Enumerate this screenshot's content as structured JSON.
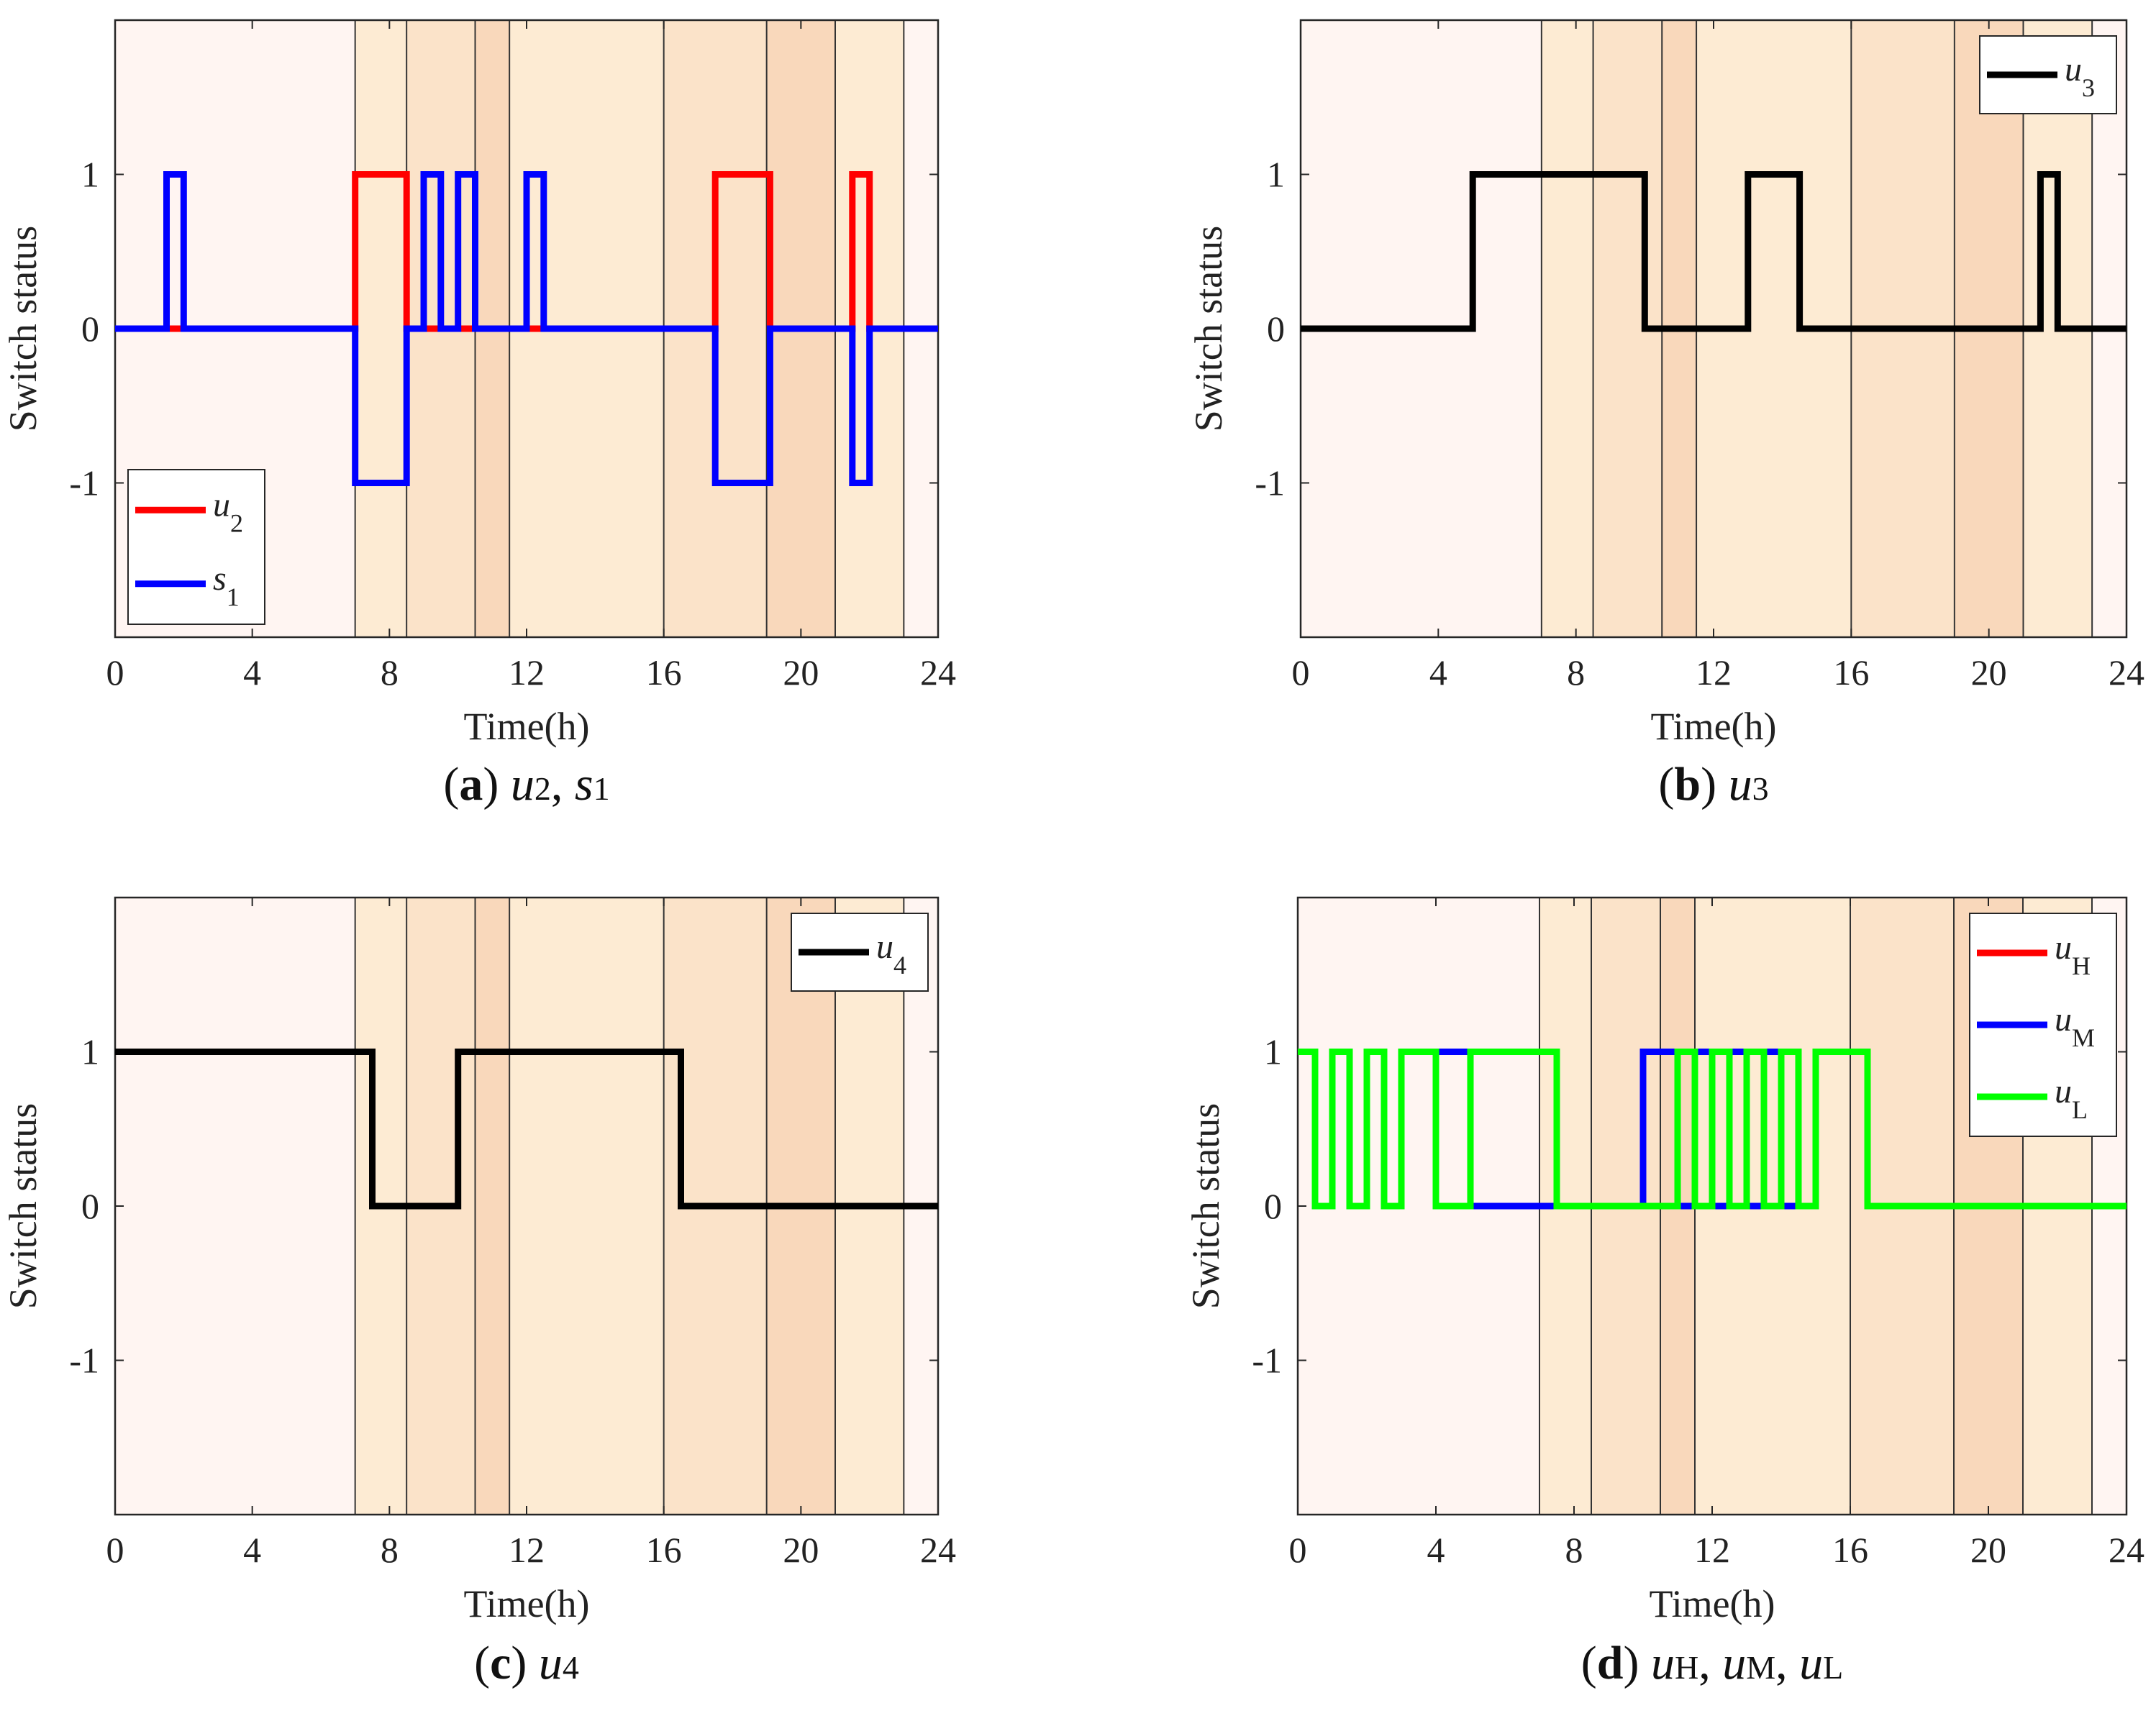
{
  "chart_data": [
    {
      "type": "line",
      "panel": "a",
      "caption": {
        "letter": "a",
        "parts": [
          {
            "base": "u",
            "sub": "2"
          },
          {
            "base": "s",
            "sub": "1"
          }
        ]
      },
      "xlabel": "Time(h)",
      "ylabel": "Switch status",
      "xlim": [
        0,
        24
      ],
      "ylim": [
        -2,
        2
      ],
      "xticks": [
        0,
        4,
        8,
        12,
        16,
        20,
        24
      ],
      "yticks": [
        -1,
        0,
        1
      ],
      "legend_position": "bottom-left",
      "series": [
        {
          "name": "u",
          "sub": "2",
          "color": "#ff0000",
          "x": [
            0,
            7,
            7,
            8.5,
            8.5,
            17.5,
            17.5,
            19.1,
            19.1,
            21.5,
            21.5,
            22,
            22,
            24
          ],
          "y": [
            0,
            0,
            1,
            1,
            0,
            0,
            1,
            1,
            0,
            0,
            1,
            1,
            0,
            0
          ]
        },
        {
          "name": "s",
          "sub": "1",
          "color": "#0000ff",
          "x": [
            0,
            1.5,
            1.5,
            2,
            2,
            7,
            7,
            8.5,
            8.5,
            9,
            9,
            9.5,
            9.5,
            10,
            10,
            10.5,
            10.5,
            12,
            12,
            12.5,
            12.5,
            17.5,
            17.5,
            19.1,
            19.1,
            21.5,
            21.5,
            22,
            22,
            24
          ],
          "y": [
            0,
            0,
            1,
            1,
            0,
            0,
            -1,
            -1,
            0,
            0,
            1,
            1,
            0,
            0,
            1,
            1,
            0,
            0,
            1,
            1,
            0,
            0,
            -1,
            -1,
            0,
            0,
            -1,
            -1,
            0,
            0
          ]
        }
      ]
    },
    {
      "type": "line",
      "panel": "b",
      "caption": {
        "letter": "b",
        "parts": [
          {
            "base": "u",
            "sub": "3"
          }
        ]
      },
      "xlabel": "Time(h)",
      "ylabel": "Switch status",
      "xlim": [
        0,
        24
      ],
      "ylim": [
        -2,
        2
      ],
      "xticks": [
        0,
        4,
        8,
        12,
        16,
        20,
        24
      ],
      "yticks": [
        -1,
        0,
        1
      ],
      "legend_position": "top-right",
      "series": [
        {
          "name": "u",
          "sub": "3",
          "color": "#000000",
          "x": [
            0,
            5,
            5,
            10,
            10,
            13,
            13,
            14.5,
            14.5,
            21.5,
            21.5,
            22,
            22,
            24
          ],
          "y": [
            0,
            0,
            1,
            1,
            0,
            0,
            1,
            1,
            0,
            0,
            1,
            1,
            0,
            0
          ]
        }
      ]
    },
    {
      "type": "line",
      "panel": "c",
      "caption": {
        "letter": "c",
        "parts": [
          {
            "base": "u",
            "sub": "4"
          }
        ]
      },
      "xlabel": "Time(h)",
      "ylabel": "Switch status",
      "xlim": [
        0,
        24
      ],
      "ylim": [
        -2,
        2
      ],
      "xticks": [
        0,
        4,
        8,
        12,
        16,
        20,
        24
      ],
      "yticks": [
        -1,
        0,
        1
      ],
      "legend_position": "top-right",
      "series": [
        {
          "name": "u",
          "sub": "4",
          "color": "#000000",
          "x": [
            0,
            7.5,
            7.5,
            10,
            10,
            16.5,
            16.5,
            24
          ],
          "y": [
            1,
            1,
            0,
            0,
            1,
            1,
            0,
            0
          ]
        }
      ]
    },
    {
      "type": "line",
      "panel": "d",
      "caption": {
        "letter": "d",
        "parts": [
          {
            "base": "u",
            "sub": "H"
          },
          {
            "base": "u",
            "sub": "M"
          },
          {
            "base": "u",
            "sub": "L"
          }
        ]
      },
      "xlabel": "Time(h)",
      "ylabel": "Switch status",
      "xlim": [
        0,
        24
      ],
      "ylim": [
        -2,
        2
      ],
      "xticks": [
        0,
        4,
        8,
        12,
        16,
        20,
        24
      ],
      "yticks": [
        -1,
        0,
        1
      ],
      "legend_position": "top-right",
      "series": [
        {
          "name": "u",
          "sub": "H",
          "color": "#ff0000",
          "x": [
            0,
            0.5,
            0.5,
            1,
            1,
            1.5,
            1.5,
            2,
            2,
            2.5,
            2.5,
            3,
            3,
            4,
            4,
            5,
            5,
            7.5,
            7.5,
            11,
            11,
            11.5,
            11.5,
            12,
            12,
            12.5,
            12.5,
            13,
            13,
            13.5,
            13.5,
            14,
            14,
            14.5,
            14.5,
            15,
            15,
            16.5,
            16.5,
            24
          ],
          "y": [
            1,
            1,
            0,
            0,
            1,
            1,
            0,
            0,
            1,
            1,
            0,
            0,
            1,
            1,
            0,
            0,
            1,
            1,
            0,
            0,
            1,
            1,
            0,
            0,
            1,
            1,
            0,
            0,
            1,
            1,
            0,
            0,
            1,
            1,
            0,
            0,
            1,
            1,
            0,
            0
          ]
        },
        {
          "name": "u",
          "sub": "M",
          "color": "#0000ff",
          "x": [
            0,
            0.5,
            0.5,
            1,
            1,
            1.5,
            1.5,
            2,
            2,
            2.5,
            2.5,
            3,
            3,
            5,
            5,
            10,
            10,
            11,
            11,
            11.5,
            11.5,
            12,
            12,
            12.5,
            12.5,
            13,
            13,
            13.5,
            13.5,
            14,
            14,
            15,
            15,
            16.5,
            16.5,
            24
          ],
          "y": [
            1,
            1,
            0,
            0,
            1,
            1,
            0,
            0,
            1,
            1,
            0,
            0,
            1,
            1,
            0,
            0,
            1,
            1,
            0,
            0,
            1,
            1,
            0,
            0,
            1,
            1,
            0,
            0,
            1,
            1,
            0,
            0,
            1,
            1,
            0,
            0
          ]
        },
        {
          "name": "u",
          "sub": "L",
          "color": "#00ff00",
          "x": [
            0,
            0.5,
            0.5,
            1,
            1,
            1.5,
            1.5,
            2,
            2,
            2.5,
            2.5,
            3,
            3,
            4,
            4,
            5,
            5,
            7.5,
            7.5,
            11,
            11,
            11.5,
            11.5,
            12,
            12,
            12.5,
            12.5,
            13,
            13,
            13.5,
            13.5,
            14,
            14,
            14.5,
            14.5,
            15,
            15,
            16.5,
            16.5,
            24
          ],
          "y": [
            1,
            1,
            0,
            0,
            1,
            1,
            0,
            0,
            1,
            1,
            0,
            0,
            1,
            1,
            0,
            0,
            1,
            1,
            0,
            0,
            1,
            1,
            0,
            0,
            1,
            1,
            0,
            0,
            1,
            1,
            0,
            0,
            1,
            1,
            0,
            0,
            1,
            1,
            0,
            0
          ]
        }
      ]
    }
  ],
  "background_bands": [
    {
      "from": 0,
      "to": 7,
      "color": "#fff5f2"
    },
    {
      "from": 7,
      "to": 8.5,
      "color": "#fdebd3"
    },
    {
      "from": 8.5,
      "to": 10.5,
      "color": "#fbe3c9"
    },
    {
      "from": 10.5,
      "to": 11.5,
      "color": "#f9d8bb"
    },
    {
      "from": 11.5,
      "to": 16,
      "color": "#fdebd3"
    },
    {
      "from": 16,
      "to": 19,
      "color": "#fbe3c9"
    },
    {
      "from": 19,
      "to": 21,
      "color": "#f9d8bb"
    },
    {
      "from": 21,
      "to": 23,
      "color": "#fdebd3"
    },
    {
      "from": 23,
      "to": 24,
      "color": "#fff5f2"
    }
  ]
}
